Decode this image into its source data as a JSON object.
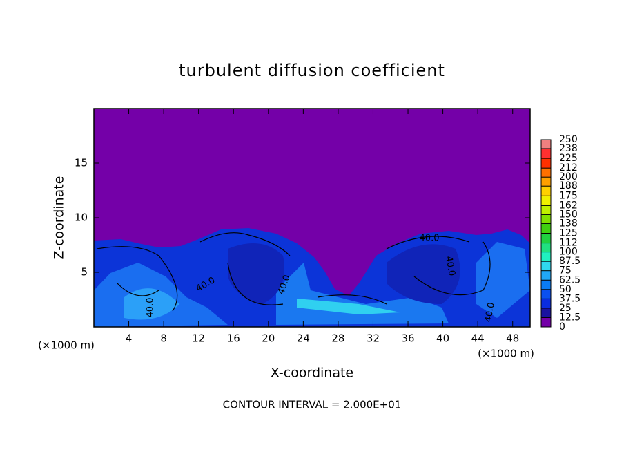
{
  "chart_data": {
    "type": "contour",
    "title": "turbulent diffusion coefficient",
    "xlabel": "X-coordinate",
    "ylabel": "Z-coordinate",
    "x_unit_labels": [
      "(×1000 m)",
      "(×1000 m)"
    ],
    "note": "CONTOUR INTERVAL = 2.000E+01",
    "xlim": [
      0,
      50
    ],
    "xticks": [
      4,
      8,
      12,
      16,
      20,
      24,
      28,
      32,
      36,
      40,
      44,
      48
    ],
    "ylim": [
      0,
      20
    ],
    "yticks": [
      5,
      10,
      15
    ],
    "clim": [
      0,
      250
    ],
    "colorbar_ticks": [
      0,
      12.5,
      25,
      37.5,
      50,
      62.5,
      75,
      87.5,
      100,
      112,
      125,
      138,
      150,
      162,
      175,
      188,
      200,
      212,
      225,
      238,
      250
    ],
    "colorbar_colors": [
      "#7400a8",
      "#1a12a0",
      "#0a2ce0",
      "#0a50f0",
      "#0a7cf5",
      "#20a8f8",
      "#30d8f0",
      "#20f0c0",
      "#20e080",
      "#20d040",
      "#40d010",
      "#80e000",
      "#c0f000",
      "#f0f000",
      "#ffd000",
      "#ffa000",
      "#ff7000",
      "#ff3000",
      "#ff3030",
      "#f08080"
    ],
    "contour_labels": [
      "40.0",
      "40.0",
      "40.0",
      "40.0",
      "40.0",
      "40.0"
    ]
  }
}
